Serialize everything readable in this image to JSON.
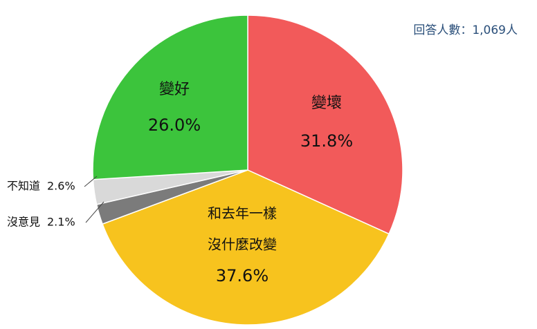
{
  "chart_data": {
    "type": "pie",
    "annotation": "回答人數：1,069人",
    "categories": [
      "變壞",
      [
        "和去年一樣",
        "沒什麼改變"
      ],
      "沒意見",
      "不知道",
      "變好"
    ],
    "values": [
      31.8,
      37.6,
      2.1,
      2.6,
      26.0
    ],
    "value_labels": [
      "31.8%",
      "37.6%",
      "2.1%",
      "2.6%",
      "26.0%"
    ],
    "colors": [
      "#f25a5a",
      "#f7c31e",
      "#7b7b7b",
      "#d9d9d9",
      "#3cc43c"
    ]
  }
}
